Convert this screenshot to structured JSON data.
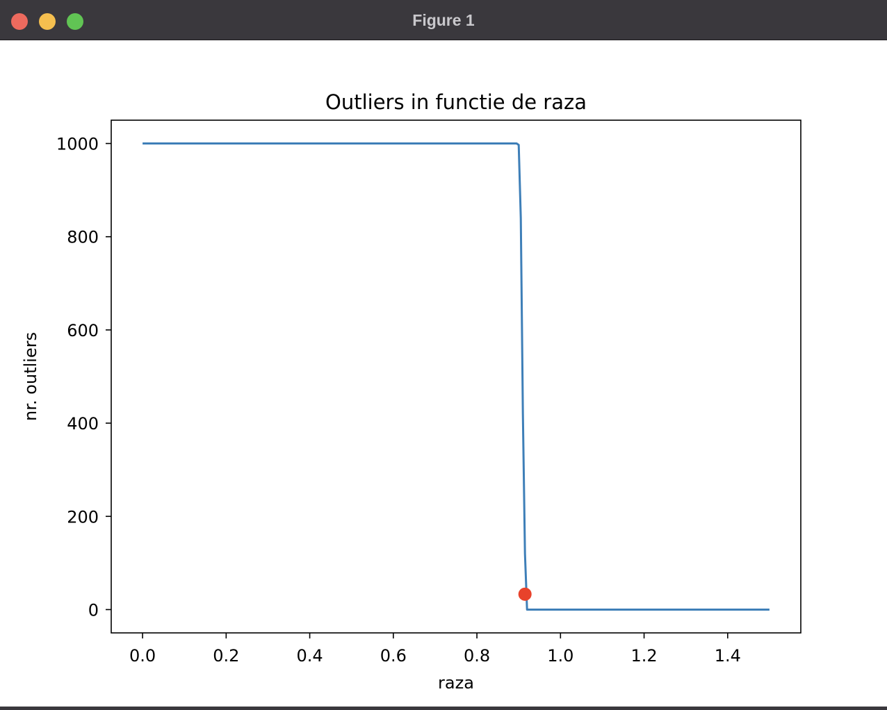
{
  "window": {
    "title": "Figure 1"
  },
  "chart_data": {
    "type": "line",
    "title": "Outliers in functie de raza",
    "xlabel": "raza",
    "ylabel": "nr. outliers",
    "xlim": [
      -0.075,
      1.575
    ],
    "ylim": [
      -50,
      1050
    ],
    "xticks": [
      0.0,
      0.2,
      0.4,
      0.6,
      0.8,
      1.0,
      1.2,
      1.4
    ],
    "xtick_labels": [
      "0.0",
      "0.2",
      "0.4",
      "0.6",
      "0.8",
      "1.0",
      "1.2",
      "1.4"
    ],
    "yticks": [
      0,
      200,
      400,
      600,
      800,
      1000
    ],
    "ytick_labels": [
      "0",
      "200",
      "400",
      "600",
      "800",
      "1000"
    ],
    "grid": false,
    "series": [
      {
        "color": "#3e7fb8",
        "x": [
          0.0,
          0.895,
          0.9,
          0.905,
          0.91,
          0.915,
          0.92,
          1.5
        ],
        "y": [
          1000,
          1000,
          997,
          840,
          420,
          120,
          0,
          0
        ]
      }
    ],
    "highlight_point": {
      "x": 0.915,
      "y": 33,
      "color": "#e8422b"
    }
  }
}
